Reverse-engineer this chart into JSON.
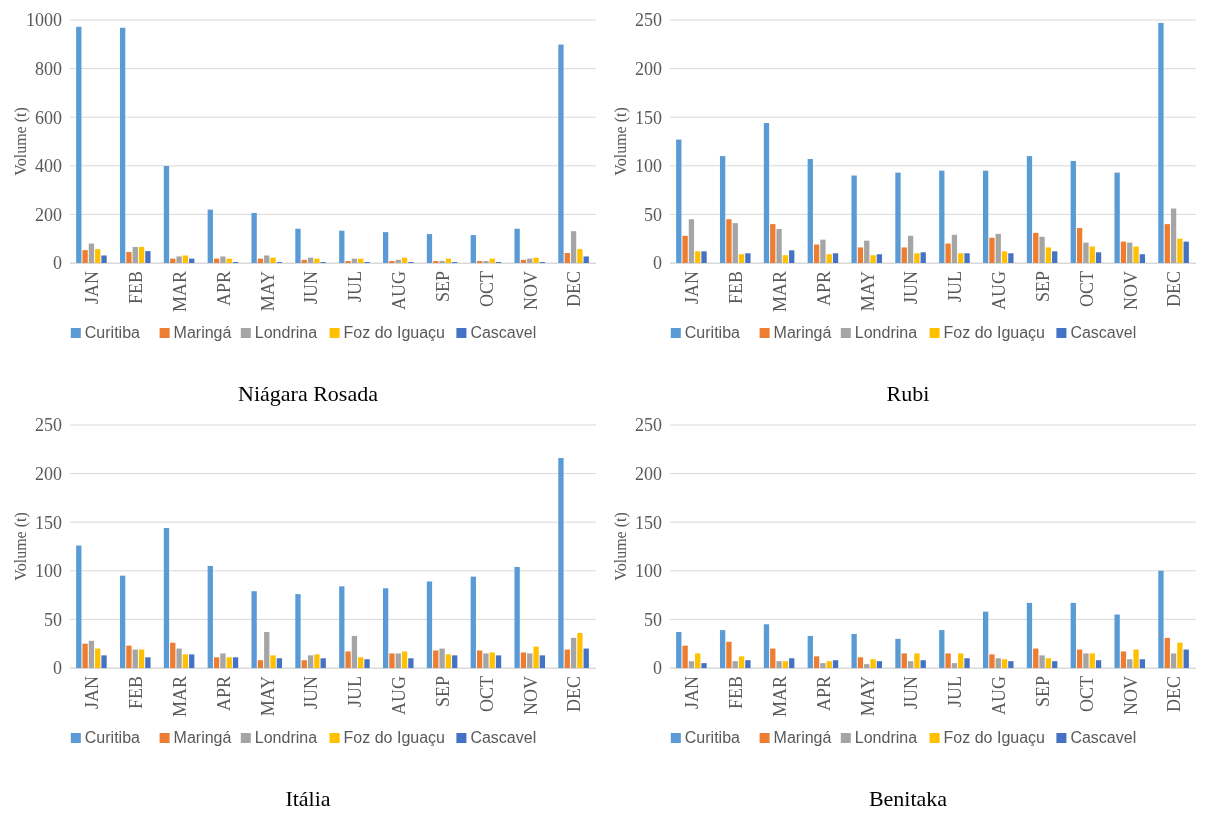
{
  "chart_data": [
    {
      "type": "bar",
      "title": "Niágara Rosada",
      "ylabel": "Volume (t)",
      "categories": [
        "JAN",
        "FEB",
        "MAR",
        "APR",
        "MAY",
        "JUN",
        "JUL",
        "AUG",
        "SEP",
        "OCT",
        "NOV",
        "DEC"
      ],
      "ylim": [
        0,
        1000
      ],
      "yticks": [
        0,
        200,
        400,
        600,
        800,
        1000
      ],
      "grid": "y",
      "legend": "bottom",
      "series": [
        {
          "name": "Curitiba",
          "color": "#5b9bd5",
          "values": [
            972,
            968,
            399,
            220,
            206,
            141,
            133,
            127,
            119,
            115,
            141,
            899
          ]
        },
        {
          "name": "Maringá",
          "color": "#ed7d31",
          "values": [
            53,
            45,
            18,
            18,
            18,
            13,
            8,
            8,
            8,
            8,
            13,
            41
          ]
        },
        {
          "name": "Londrina",
          "color": "#a5a5a5",
          "values": [
            80,
            66,
            27,
            27,
            31,
            22,
            18,
            13,
            8,
            8,
            18,
            131
          ]
        },
        {
          "name": "Foz do Iguaçu",
          "color": "#ffc000",
          "values": [
            57,
            66,
            31,
            18,
            22,
            18,
            18,
            22,
            18,
            18,
            22,
            57
          ]
        },
        {
          "name": "Cascavel",
          "color": "#4472c4",
          "values": [
            31,
            49,
            18,
            4,
            4,
            4,
            4,
            4,
            4,
            4,
            4,
            27
          ]
        }
      ]
    },
    {
      "type": "bar",
      "title": "Rubi",
      "ylabel": "Volume (t)",
      "categories": [
        "JAN",
        "FEB",
        "MAR",
        "APR",
        "MAY",
        "JUN",
        "JUL",
        "AUG",
        "SEP",
        "OCT",
        "NOV",
        "DEC"
      ],
      "ylim": [
        0,
        250
      ],
      "yticks": [
        0,
        50,
        100,
        150,
        200,
        250
      ],
      "grid": "y",
      "legend": "bottom",
      "series": [
        {
          "name": "Curitiba",
          "color": "#5b9bd5",
          "values": [
            127,
            110,
            144,
            107,
            90,
            93,
            95,
            95,
            110,
            105,
            93,
            247
          ]
        },
        {
          "name": "Maringá",
          "color": "#ed7d31",
          "values": [
            28,
            45,
            40,
            19,
            16,
            16,
            20,
            26,
            31,
            36,
            22,
            40
          ]
        },
        {
          "name": "Londrina",
          "color": "#a5a5a5",
          "values": [
            45,
            41,
            35,
            24,
            23,
            28,
            29,
            30,
            27,
            21,
            21,
            56
          ]
        },
        {
          "name": "Foz do Iguaçu",
          "color": "#ffc000",
          "values": [
            12,
            9,
            8,
            9,
            8,
            10,
            10,
            12,
            16,
            17,
            17,
            25
          ]
        },
        {
          "name": "Cascavel",
          "color": "#4472c4",
          "values": [
            12,
            10,
            13,
            10,
            9,
            11,
            10,
            10,
            12,
            11,
            9,
            22
          ]
        }
      ]
    },
    {
      "type": "bar",
      "title": "Itália",
      "ylabel": "Volume (t)",
      "categories": [
        "JAN",
        "FEB",
        "MAR",
        "APR",
        "MAY",
        "JUN",
        "JUL",
        "AUG",
        "SEP",
        "OCT",
        "NOV",
        "DEC"
      ],
      "ylim": [
        0,
        250
      ],
      "yticks": [
        0,
        50,
        100,
        150,
        200,
        250
      ],
      "grid": "y",
      "legend": "bottom",
      "series": [
        {
          "name": "Curitiba",
          "color": "#5b9bd5",
          "values": [
            126,
            95,
            144,
            105,
            79,
            76,
            84,
            82,
            89,
            94,
            104,
            216
          ]
        },
        {
          "name": "Maringá",
          "color": "#ed7d31",
          "values": [
            25,
            23,
            26,
            11,
            8,
            8,
            17,
            15,
            18,
            18,
            16,
            19
          ]
        },
        {
          "name": "Londrina",
          "color": "#a5a5a5",
          "values": [
            28,
            19,
            20,
            15,
            37,
            13,
            33,
            15,
            20,
            15,
            15,
            31
          ]
        },
        {
          "name": "Foz do Iguaçu",
          "color": "#ffc000",
          "values": [
            20,
            19,
            14,
            11,
            13,
            14,
            11,
            17,
            14,
            16,
            22,
            36
          ]
        },
        {
          "name": "Cascavel",
          "color": "#4472c4",
          "values": [
            13,
            11,
            14,
            11,
            10,
            10,
            9,
            10,
            13,
            13,
            13,
            20
          ]
        }
      ]
    },
    {
      "type": "bar",
      "title": "Benitaka",
      "ylabel": "Volume (t)",
      "categories": [
        "JAN",
        "FEB",
        "MAR",
        "APR",
        "MAY",
        "JUN",
        "JUL",
        "AUG",
        "SEP",
        "OCT",
        "NOV",
        "DEC"
      ],
      "ylim": [
        0,
        250
      ],
      "yticks": [
        0,
        50,
        100,
        150,
        200,
        250
      ],
      "grid": "y",
      "legend": "bottom",
      "series": [
        {
          "name": "Curitiba",
          "color": "#5b9bd5",
          "values": [
            37,
            39,
            45,
            33,
            35,
            30,
            39,
            58,
            67,
            67,
            55,
            100
          ]
        },
        {
          "name": "Maringá",
          "color": "#ed7d31",
          "values": [
            23,
            27,
            20,
            12,
            11,
            15,
            15,
            14,
            20,
            19,
            17,
            31
          ]
        },
        {
          "name": "Londrina",
          "color": "#a5a5a5",
          "values": [
            7,
            7,
            7,
            5,
            4,
            7,
            5,
            10,
            13,
            15,
            9,
            15
          ]
        },
        {
          "name": "Foz do Iguaçu",
          "color": "#ffc000",
          "values": [
            15,
            12,
            7,
            7,
            9,
            15,
            15,
            9,
            10,
            15,
            19,
            26
          ]
        },
        {
          "name": "Cascavel",
          "color": "#4472c4",
          "values": [
            5,
            8,
            10,
            8,
            7,
            8,
            10,
            7,
            7,
            8,
            9,
            19
          ]
        }
      ]
    }
  ]
}
